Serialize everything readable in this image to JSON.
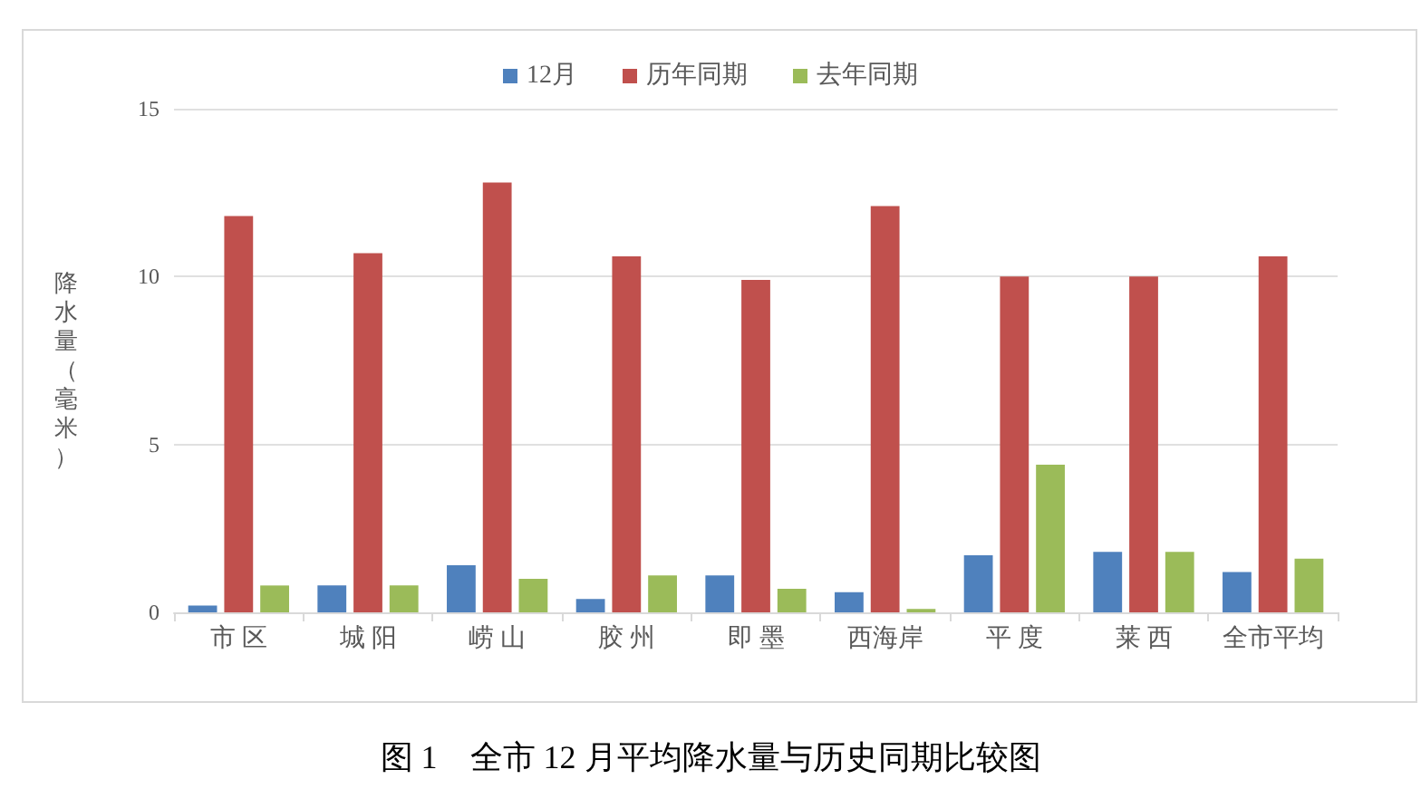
{
  "chart_data": {
    "type": "bar",
    "title": "图 1　全市 12 月平均降水量与历史同期比较图",
    "ylabel": "降水量（毫米）",
    "categories": [
      "市 区",
      "城 阳",
      "崂 山",
      "胶 州",
      "即 墨",
      "西海岸",
      "平 度",
      "莱 西",
      "全市平均"
    ],
    "series": [
      {
        "name": "12月",
        "color": "#4f81bd",
        "values": [
          0.2,
          0.8,
          1.4,
          0.4,
          1.1,
          0.6,
          1.7,
          1.8,
          1.2
        ]
      },
      {
        "name": "历年同期",
        "color": "#c0504d",
        "values": [
          11.8,
          10.7,
          12.8,
          10.6,
          9.9,
          12.1,
          10.0,
          10.0,
          10.6
        ]
      },
      {
        "name": "去年同期",
        "color": "#9bbb59",
        "values": [
          0.8,
          0.8,
          1.0,
          1.1,
          0.7,
          0.1,
          4.4,
          1.8,
          1.6
        ]
      }
    ],
    "ylim": [
      0,
      15
    ],
    "yticks": [
      0,
      5,
      10,
      15
    ],
    "grid": "y",
    "legend": "top"
  }
}
